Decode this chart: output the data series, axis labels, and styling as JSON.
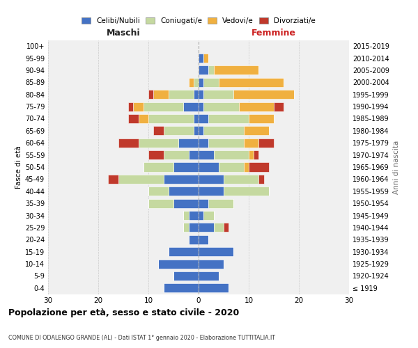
{
  "age_groups": [
    "100+",
    "95-99",
    "90-94",
    "85-89",
    "80-84",
    "75-79",
    "70-74",
    "65-69",
    "60-64",
    "55-59",
    "50-54",
    "45-49",
    "40-44",
    "35-39",
    "30-34",
    "25-29",
    "20-24",
    "15-19",
    "10-14",
    "5-9",
    "0-4"
  ],
  "birth_years": [
    "≤ 1919",
    "1920-1924",
    "1925-1929",
    "1930-1934",
    "1935-1939",
    "1940-1944",
    "1945-1949",
    "1950-1954",
    "1955-1959",
    "1960-1964",
    "1965-1969",
    "1970-1974",
    "1975-1979",
    "1980-1984",
    "1985-1989",
    "1990-1994",
    "1995-1999",
    "2000-2004",
    "2005-2009",
    "2010-2014",
    "2015-2019"
  ],
  "colors": {
    "celibi": "#4472c4",
    "coniugati": "#c5d9a0",
    "vedovi": "#f0b040",
    "divorziati": "#c0392b"
  },
  "maschi": {
    "celibi": [
      0,
      0,
      0,
      0,
      1,
      3,
      1,
      1,
      4,
      2,
      5,
      7,
      6,
      5,
      2,
      2,
      2,
      6,
      8,
      5,
      7
    ],
    "coniugati": [
      0,
      0,
      0,
      1,
      5,
      8,
      9,
      6,
      8,
      5,
      6,
      9,
      4,
      5,
      1,
      1,
      0,
      0,
      0,
      0,
      0
    ],
    "vedovi": [
      0,
      0,
      0,
      1,
      3,
      2,
      2,
      0,
      0,
      0,
      0,
      0,
      0,
      0,
      0,
      0,
      0,
      0,
      0,
      0,
      0
    ],
    "divorziati": [
      0,
      0,
      0,
      0,
      1,
      1,
      2,
      2,
      4,
      3,
      0,
      2,
      0,
      0,
      0,
      0,
      0,
      0,
      0,
      0,
      0
    ]
  },
  "femmine": {
    "celibi": [
      0,
      1,
      2,
      1,
      1,
      1,
      2,
      1,
      2,
      3,
      4,
      5,
      5,
      2,
      1,
      3,
      2,
      7,
      5,
      4,
      6
    ],
    "coniugati": [
      0,
      0,
      1,
      3,
      6,
      7,
      8,
      8,
      7,
      7,
      5,
      7,
      9,
      5,
      2,
      2,
      0,
      0,
      0,
      0,
      0
    ],
    "vedovi": [
      0,
      1,
      9,
      13,
      12,
      7,
      5,
      5,
      3,
      1,
      1,
      0,
      0,
      0,
      0,
      0,
      0,
      0,
      0,
      0,
      0
    ],
    "divorziati": [
      0,
      0,
      0,
      0,
      0,
      2,
      0,
      0,
      3,
      1,
      4,
      1,
      0,
      0,
      0,
      1,
      0,
      0,
      0,
      0,
      0
    ]
  },
  "title": "Popolazione per età, sesso e stato civile - 2020",
  "subtitle": "COMUNE DI ODALENGO GRANDE (AL) - Dati ISTAT 1° gennaio 2020 - Elaborazione TUTTITALIA.IT",
  "xlabel_left": "Maschi",
  "xlabel_right": "Femmine",
  "ylabel_left": "Fasce di età",
  "ylabel_right": "Anni di nascita",
  "xlim": 30,
  "legend_labels": [
    "Celibi/Nubili",
    "Coniugati/e",
    "Vedovi/e",
    "Divorziati/e"
  ],
  "bg_color": "#f0f0f0",
  "grid_color": "#cccccc",
  "center_line_color": "#aaaaaa"
}
